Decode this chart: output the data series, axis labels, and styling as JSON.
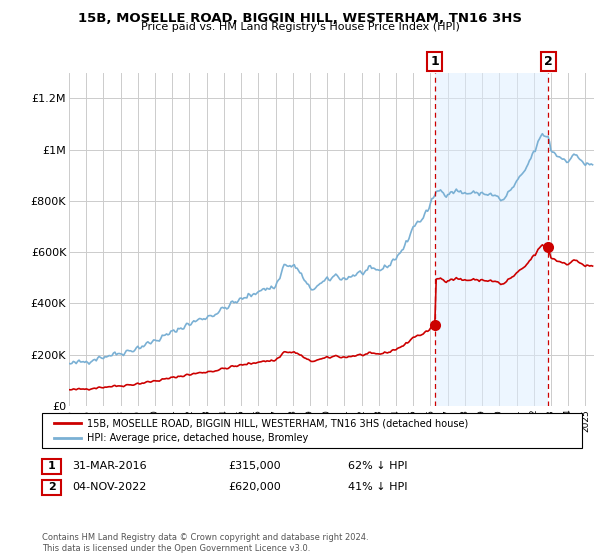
{
  "title": "15B, MOSELLE ROAD, BIGGIN HILL, WESTERHAM, TN16 3HS",
  "subtitle": "Price paid vs. HM Land Registry's House Price Index (HPI)",
  "legend_label_red": "15B, MOSELLE ROAD, BIGGIN HILL, WESTERHAM, TN16 3HS (detached house)",
  "legend_label_blue": "HPI: Average price, detached house, Bromley",
  "note1_date": "31-MAR-2016",
  "note1_price": "£315,000",
  "note1_hpi": "62% ↓ HPI",
  "note2_date": "04-NOV-2022",
  "note2_price": "£620,000",
  "note2_hpi": "41% ↓ HPI",
  "footer": "Contains HM Land Registry data © Crown copyright and database right 2024.\nThis data is licensed under the Open Government Licence v3.0.",
  "ylim": [
    0,
    1300000
  ],
  "yticks": [
    0,
    200000,
    400000,
    600000,
    800000,
    1000000,
    1200000
  ],
  "ytick_labels": [
    "£0",
    "£200K",
    "£400K",
    "£600K",
    "£800K",
    "£1M",
    "£1.2M"
  ],
  "sale1_x": 2016.25,
  "sale1_y": 315000,
  "sale2_x": 2022.85,
  "sale2_y": 620000,
  "red_color": "#cc0000",
  "blue_color": "#7ab0d4",
  "blue_fill": "#ddeeff",
  "bg_color": "#ffffff",
  "grid_color": "#cccccc",
  "xmin": 1995,
  "xmax": 2025.5,
  "hpi_scale1": 0.38,
  "hpi_scale2": 0.59,
  "hpi_base_ref": 193000
}
